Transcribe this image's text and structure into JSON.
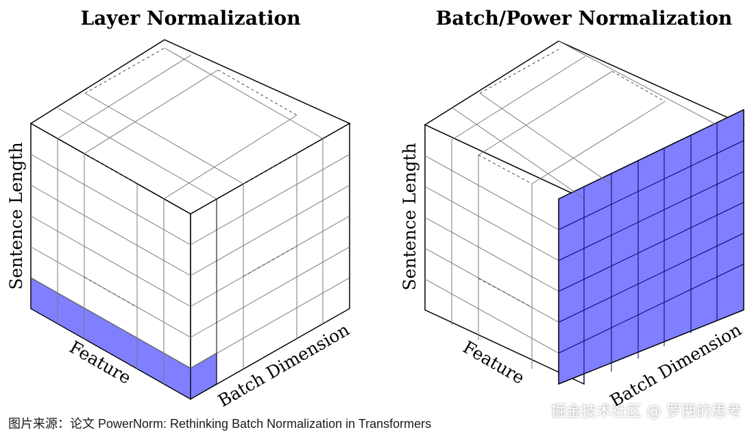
{
  "panels": [
    {
      "title": "Layer Normalization",
      "axis_labels": {
        "vertical": "Sentence Length",
        "left_floor": "Feature",
        "right_floor": "Batch Dimension"
      },
      "highlighted": "bottom row across feature dimension (single batch sample)"
    },
    {
      "title": "Batch/Power Normalization",
      "axis_labels": {
        "vertical": "Sentence Length",
        "left_floor": "Feature",
        "right_floor": "Batch Dimension"
      },
      "highlighted": "one feature slice across batch and sentence length"
    }
  ],
  "caption": "图片来源：论文 PowerNorm: Rethinking Batch Normalization in Transformers",
  "watermark": "掘金技术社区 @ 罗西的思考",
  "colors": {
    "highlight": "#7f7fff",
    "outline": "#000000",
    "grid": "#888888"
  }
}
